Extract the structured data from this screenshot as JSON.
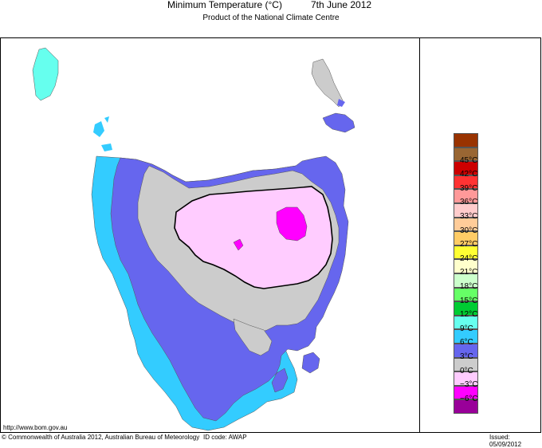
{
  "header": {
    "title": "Minimum Temperature (°C)",
    "date": "7th June 2012",
    "subtitle": "Product of the National Climate Centre"
  },
  "legend": {
    "items": [
      {
        "label": "",
        "color": "#993300"
      },
      {
        "label": "45°C",
        "color": "#996633"
      },
      {
        "label": "42°C",
        "color": "#cc0000"
      },
      {
        "label": "39°C",
        "color": "#ff3333"
      },
      {
        "label": "36°C",
        "color": "#ff9999"
      },
      {
        "label": "33°C",
        "color": "#ffcccc"
      },
      {
        "label": "30°C",
        "color": "#ffcc99"
      },
      {
        "label": "27°C",
        "color": "#ffcc66"
      },
      {
        "label": "24°C",
        "color": "#ffff33"
      },
      {
        "label": "21°C",
        "color": "#ffffcc"
      },
      {
        "label": "18°C",
        "color": "#ccffcc"
      },
      {
        "label": "15°C",
        "color": "#66ff66"
      },
      {
        "label": "12°C",
        "color": "#00cc33"
      },
      {
        "label": "9°C",
        "color": "#66ffee"
      },
      {
        "label": "6°C",
        "color": "#33ccff"
      },
      {
        "label": "3°C",
        "color": "#6666ee"
      },
      {
        "label": "0°C",
        "color": "#cccccc"
      },
      {
        "label": "−3°C",
        "color": "#ffccff"
      },
      {
        "label": "−6°C",
        "color": "#ff00ff"
      },
      {
        "label": "",
        "color": "#990099"
      }
    ]
  },
  "footer": {
    "url": "http://www.bom.gov.au",
    "copyright": "© Commonwealth of Australia 2012, Australian Bureau of Meteorology",
    "id_code": "ID code: AWAP",
    "issued": "Issued: 05/09/2012"
  }
}
